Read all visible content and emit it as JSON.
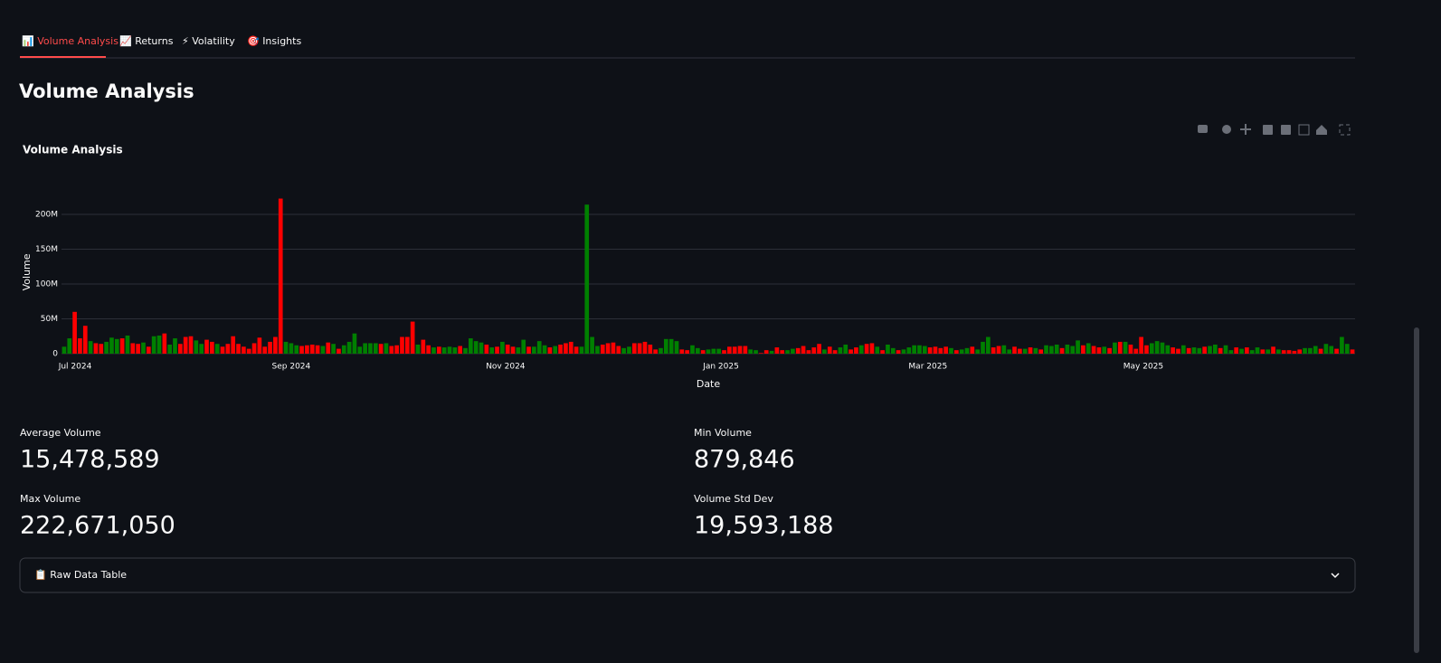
{
  "tabs": [
    "📊 Volume Analysis",
    "📈 Returns",
    "⚡ Volatility",
    "🎯 Insights"
  ],
  "heading": "Volume Analysis",
  "chart_data": {
    "type": "bar",
    "title": "Volume Analysis",
    "xlabel": "Date",
    "ylabel": "Volume",
    "grid": true,
    "ylim": [
      0,
      234000000.0
    ],
    "yticks": [
      0,
      {
        "value": 50000000.0,
        "label": "50M"
      },
      {
        "value": 100000000.0,
        "label": "100M"
      },
      {
        "value": 150000000.0,
        "label": "150M"
      },
      {
        "value": 200000000.0,
        "label": "200M"
      }
    ],
    "xlim": [
      -0.5,
      244.5
    ],
    "xticks": [
      {
        "value": 2.07,
        "label": "Jul 2024"
      },
      {
        "value": 43.0,
        "label": "Sep 2024"
      },
      {
        "value": 83.6,
        "label": "Nov 2024"
      },
      {
        "value": 124.4,
        "label": "Jan 2025"
      },
      {
        "value": 163.6,
        "label": "Mar 2025"
      },
      {
        "value": 204.4,
        "label": "May 2025"
      }
    ],
    "values": [
      10000000.0,
      22000000.0,
      60000000.0,
      22000000.0,
      40000000.0,
      18000000.0,
      15000000.0,
      14000000.0,
      17000000.0,
      23000000.0,
      21000000.0,
      22000000.0,
      26000000.0,
      15000000.0,
      14000000.0,
      16000000.0,
      10000000.0,
      25000000.0,
      26000000.0,
      29000000.0,
      13000000.0,
      22000000.0,
      14000000.0,
      24000000.0,
      25000000.0,
      19000000.0,
      14000000.0,
      20000000.0,
      17000000.0,
      14000000.0,
      10000000.0,
      14000000.0,
      25000000.0,
      14000000.0,
      10000000.0,
      7000000.0,
      15000000.0,
      23000000.0,
      10000000.0,
      17000000.0,
      24000000.0,
      222671050,
      17000000.0,
      15000000.0,
      12000000.0,
      11000000.0,
      12000000.0,
      13000000.0,
      12000000.0,
      11000000.0,
      16000000.0,
      14000000.0,
      7000000.0,
      12000000.0,
      17000000.0,
      29000000.0,
      10000000.0,
      15000000.0,
      15000000.0,
      15000000.0,
      14000000.0,
      15000000.0,
      11000000.0,
      12000000.0,
      24000000.0,
      24000000.0,
      46000000.0,
      13000000.0,
      20000000.0,
      12000000.0,
      9000000.0,
      10000000.0,
      9000000.0,
      10000000.0,
      9000000.0,
      11000000.0,
      8000000.0,
      22000000.0,
      18000000.0,
      16000000.0,
      13000000.0,
      9000000.0,
      10000000.0,
      17000000.0,
      13000000.0,
      10000000.0,
      9000000.0,
      20000000.0,
      10000000.0,
      10000000.0,
      18000000.0,
      12000000.0,
      9000000.0,
      11000000.0,
      13000000.0,
      15000000.0,
      17000000.0,
      10000000.0,
      10000000.0,
      214000000.0,
      24000000.0,
      11000000.0,
      13000000.0,
      15000000.0,
      16000000.0,
      11000000.0,
      8000000.0,
      10000000.0,
      15000000.0,
      15000000.0,
      17000000.0,
      13000000.0,
      6000000.0,
      8000000.0,
      21000000.0,
      21000000.0,
      18000000.0,
      6000000.0,
      5000000.0,
      12000000.0,
      8000000.0,
      5000000.0,
      6000000.0,
      7000000.0,
      7000000.0,
      5000000.0,
      10000000.0,
      10000000.0,
      11000000.0,
      11000000.0,
      6000000.0,
      5000000.0,
      879846,
      5000000.0,
      4000000.0,
      9000000.0,
      5000000.0,
      5000000.0,
      7000000.0,
      8000000.0,
      11000000.0,
      5000000.0,
      9000000.0,
      14000000.0,
      6000000.0,
      10000000.0,
      5000000.0,
      9000000.0,
      13000000.0,
      6000000.0,
      9000000.0,
      12000000.0,
      14000000.0,
      15000000.0,
      10000000.0,
      5000000.0,
      13000000.0,
      8000000.0,
      5000000.0,
      6000000.0,
      9000000.0,
      12000000.0,
      12000000.0,
      11000000.0,
      9000000.0,
      10000000.0,
      8000000.0,
      10000000.0,
      8000000.0,
      5000000.0,
      6000000.0,
      8000000.0,
      10000000.0,
      6000000.0,
      17000000.0,
      24000000.0,
      9000000.0,
      11000000.0,
      12000000.0,
      6000000.0,
      10000000.0,
      7000000.0,
      7000000.0,
      9000000.0,
      8000000.0,
      6000000.0,
      12000000.0,
      11000000.0,
      13000000.0,
      8000000.0,
      13000000.0,
      11000000.0,
      19000000.0,
      12000000.0,
      15000000.0,
      11000000.0,
      9000000.0,
      10000000.0,
      8000000.0,
      16000000.0,
      17000000.0,
      17000000.0,
      13000000.0,
      7000000.0,
      24000000.0,
      12000000.0,
      15000000.0,
      18000000.0,
      16000000.0,
      12000000.0,
      9000000.0,
      7000000.0,
      12000000.0,
      8000000.0,
      9000000.0,
      8000000.0,
      10000000.0,
      11000000.0,
      13000000.0,
      8000000.0,
      12000000.0,
      5000000.0,
      9000000.0,
      7000000.0,
      9000000.0,
      5000000.0,
      9000000.0,
      6000000.0,
      6000000.0,
      10000000.0,
      6000000.0,
      5000000.0,
      5000000.0,
      4000000.0,
      6000000.0,
      8000000.0,
      8000000.0,
      11000000.0,
      7000000.0,
      14000000.0,
      11000000.0,
      7000000.0,
      24000000.0,
      14000000.0,
      6000000.0
    ],
    "colors": [
      "green",
      "green",
      "red",
      "red",
      "red",
      "green",
      "red",
      "red",
      "green",
      "green",
      "green",
      "red",
      "green",
      "red",
      "red",
      "green",
      "red",
      "green",
      "green",
      "red",
      "green",
      "green",
      "red",
      "red",
      "red",
      "green",
      "green",
      "red",
      "red",
      "green",
      "red",
      "red",
      "red",
      "red",
      "red",
      "red",
      "red",
      "red",
      "red",
      "red",
      "red",
      "red",
      "green",
      "green",
      "green",
      "red",
      "red",
      "red",
      "red",
      "green",
      "red",
      "green",
      "red",
      "green",
      "green",
      "green",
      "green",
      "green",
      "green",
      "green",
      "red",
      "green",
      "red",
      "red",
      "red",
      "red",
      "red",
      "green",
      "red",
      "red",
      "green",
      "red",
      "green",
      "green",
      "green",
      "red",
      "green",
      "green",
      "green",
      "green",
      "red",
      "green",
      "red",
      "green",
      "red",
      "red",
      "green",
      "green",
      "red",
      "green",
      "green",
      "green",
      "red",
      "green",
      "red",
      "red",
      "red",
      "red",
      "green",
      "green",
      "green",
      "green",
      "red",
      "red",
      "red",
      "red",
      "green",
      "green",
      "red",
      "red",
      "red",
      "red",
      "red",
      "green",
      "green",
      "green",
      "green",
      "red",
      "red",
      "green",
      "green",
      "red",
      "green",
      "green",
      "green",
      "red",
      "red",
      "red",
      "red",
      "red",
      "green",
      "green",
      "red",
      "red",
      "green",
      "red",
      "red",
      "green",
      "green",
      "red",
      "red",
      "red",
      "red",
      "red",
      "green",
      "red",
      "red",
      "green",
      "green",
      "red",
      "red",
      "green",
      "red",
      "red",
      "green",
      "red",
      "green",
      "green",
      "red",
      "green",
      "green",
      "green",
      "green",
      "green",
      "red",
      "red",
      "red",
      "red",
      "green",
      "red",
      "green",
      "green",
      "red",
      "green",
      "green",
      "green",
      "red",
      "red",
      "green",
      "green",
      "red",
      "red",
      "green",
      "red",
      "green",
      "red",
      "green",
      "green",
      "green",
      "red",
      "green",
      "green",
      "green",
      "red",
      "green",
      "red",
      "red",
      "green",
      "red",
      "green",
      "red",
      "green",
      "red",
      "red",
      "red",
      "red",
      "green",
      "green",
      "green",
      "green",
      "red",
      "red",
      "green",
      "red",
      "green",
      "green",
      "red",
      "green",
      "green",
      "red",
      "green",
      "green",
      "red",
      "green",
      "red",
      "green",
      "green",
      "red",
      "green",
      "red",
      "green",
      "red",
      "red",
      "red",
      "red",
      "green",
      "green",
      "green",
      "red",
      "green",
      "green",
      "red",
      "green",
      "green",
      "red"
    ]
  },
  "metrics": [
    {
      "label": "Average Volume",
      "value": "15,478,589"
    },
    {
      "label": "Min Volume",
      "value": "879,846"
    },
    {
      "label": "Max Volume",
      "value": "222,671,050"
    },
    {
      "label": "Volume Std Dev",
      "value": "19,593,188"
    }
  ],
  "expander": "📋 Raw Data Table"
}
